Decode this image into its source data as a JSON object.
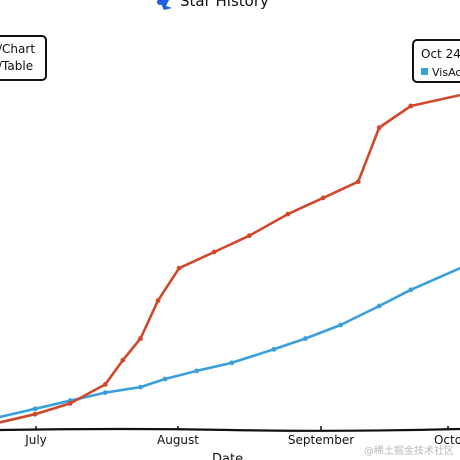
{
  "chart_data": {
    "type": "line",
    "title": "Star History",
    "xlabel": "Date",
    "ylabel": "",
    "x_ticks": [
      "July",
      "August",
      "September",
      "Octo"
    ],
    "legend_left": {
      "placement": "top-left",
      "entries": [
        "/Chart",
        "/Table"
      ]
    },
    "tooltip": {
      "placement": "top-right",
      "title": "Oct 24,",
      "entry": "VisAc"
    },
    "series": [
      {
        "name": "VisActor VTable",
        "color": "#3a9fdb",
        "x": [
          "2023-06-15",
          "2023-06-25",
          "2023-07-05",
          "2023-07-15",
          "2023-07-25",
          "2023-08-01",
          "2023-08-10",
          "2023-08-20",
          "2023-09-01",
          "2023-09-10",
          "2023-09-20",
          "2023-10-01",
          "2023-10-10",
          "2023-10-24"
        ],
        "values": [
          3,
          6,
          9,
          12,
          14,
          17,
          20,
          23,
          28,
          32,
          37,
          44,
          50,
          58
        ]
      },
      {
        "name": "VisActor VChart",
        "color": "#d0482b",
        "x": [
          "2023-06-15",
          "2023-06-25",
          "2023-07-05",
          "2023-07-15",
          "2023-07-20",
          "2023-07-25",
          "2023-07-30",
          "2023-08-05",
          "2023-08-15",
          "2023-08-25",
          "2023-09-05",
          "2023-09-15",
          "2023-09-25",
          "2023-10-01",
          "2023-10-10",
          "2023-10-24"
        ],
        "values": [
          1,
          4,
          8,
          15,
          24,
          32,
          46,
          58,
          64,
          70,
          78,
          84,
          90,
          110,
          118,
          122
        ]
      }
    ],
    "xlim": [
      "2023-06-15",
      "2023-10-24"
    ],
    "ylim": [
      0,
      135
    ],
    "watermark": "@稀土掘金技术社区"
  }
}
